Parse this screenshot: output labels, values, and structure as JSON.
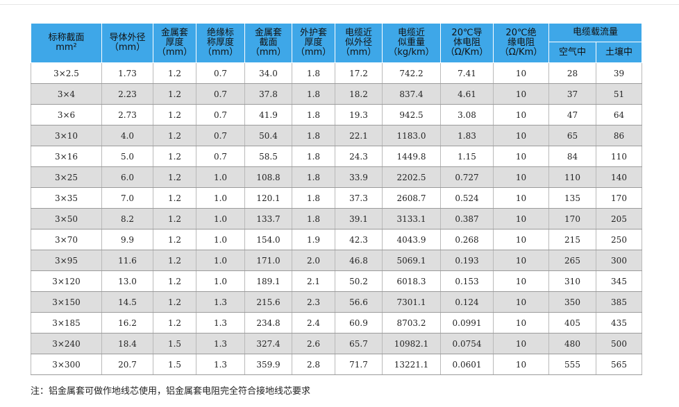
{
  "header": {
    "col1": [
      "标称截面",
      "mm²"
    ],
    "col2": [
      "导体外径",
      "（mm）"
    ],
    "col3": [
      "金属套",
      "厚度",
      "（mm）"
    ],
    "col4": [
      "绝缘标",
      "称厚度",
      "（mm）"
    ],
    "col5": [
      "金属套",
      "截面",
      "（mm）"
    ],
    "col6": [
      "外护套",
      "厚度",
      "（mm）"
    ],
    "col7": [
      "电缆近",
      "似外径",
      "（mm）"
    ],
    "col8": [
      "电缆近",
      "似重量",
      "（kg/km）"
    ],
    "col9": [
      "20℃导",
      "体电阻",
      "（Ω/Km）"
    ],
    "col10": [
      "20℃绝",
      "缘电阻",
      "（Ω/Km）"
    ],
    "group": "电缆载流量",
    "sub_air": "空气中",
    "sub_soil": "土壤中"
  },
  "rows": [
    [
      "3×2.5",
      "1.73",
      "1.2",
      "0.7",
      "34.0",
      "1.8",
      "17.2",
      "742.2",
      "7.41",
      "10",
      "28",
      "39"
    ],
    [
      "3×4",
      "2.23",
      "1.2",
      "0.7",
      "37.8",
      "1.8",
      "18.2",
      "837.4",
      "4.61",
      "10",
      "37",
      "51"
    ],
    [
      "3×6",
      "2.73",
      "1.2",
      "0.7",
      "41.9",
      "1.8",
      "19.3",
      "942.5",
      "3.08",
      "10",
      "47",
      "64"
    ],
    [
      "3×10",
      "4.0",
      "1.2",
      "0.7",
      "50.4",
      "1.8",
      "22.1",
      "1183.0",
      "1.83",
      "10",
      "65",
      "86"
    ],
    [
      "3×16",
      "5.0",
      "1.2",
      "0.7",
      "58.5",
      "1.8",
      "24.3",
      "1449.8",
      "1.15",
      "10",
      "84",
      "110"
    ],
    [
      "3×25",
      "6.0",
      "1.2",
      "1.0",
      "108.8",
      "1.8",
      "33.9",
      "2202.5",
      "0.727",
      "10",
      "110",
      "140"
    ],
    [
      "3×35",
      "7.0",
      "1.2",
      "1.0",
      "120.1",
      "1.8",
      "37.3",
      "2608.7",
      "0.524",
      "10",
      "135",
      "170"
    ],
    [
      "3×50",
      "8.2",
      "1.2",
      "1.0",
      "133.7",
      "1.8",
      "39.1",
      "3133.1",
      "0.387",
      "10",
      "170",
      "205"
    ],
    [
      "3×70",
      "9.9",
      "1.2",
      "1.0",
      "154.0",
      "1.9",
      "42.3",
      "4043.9",
      "0.268",
      "10",
      "215",
      "250"
    ],
    [
      "3×95",
      "11.6",
      "1.2",
      "1.0",
      "171.0",
      "2.0",
      "46.8",
      "5069.1",
      "0.193",
      "10",
      "265",
      "300"
    ],
    [
      "3×120",
      "13.0",
      "1.2",
      "1.0",
      "189.1",
      "2.1",
      "50.2",
      "6018.3",
      "0.153",
      "10",
      "310",
      "345"
    ],
    [
      "3×150",
      "14.5",
      "1.2",
      "1.3",
      "215.6",
      "2.3",
      "56.6",
      "7301.1",
      "0.124",
      "10",
      "350",
      "385"
    ],
    [
      "3×185",
      "16.2",
      "1.2",
      "1.3",
      "234.8",
      "2.4",
      "60.9",
      "8703.2",
      "0.0991",
      "10",
      "405",
      "435"
    ],
    [
      "3×240",
      "18.4",
      "1.5",
      "1.3",
      "327.4",
      "2.6",
      "65.7",
      "10982.1",
      "0.0754",
      "10",
      "480",
      "500"
    ],
    [
      "3×300",
      "20.7",
      "1.5",
      "1.3",
      "359.9",
      "2.8",
      "71.7",
      "13221.1",
      "0.0601",
      "10",
      "555",
      "565"
    ]
  ],
  "note": "注：铝金属套可做作地线芯使用，铝金属套电阻完全符合接地线芯要求",
  "colors": {
    "header_bg": "#3ea7e8",
    "row_alt_bg": "#dedede"
  }
}
